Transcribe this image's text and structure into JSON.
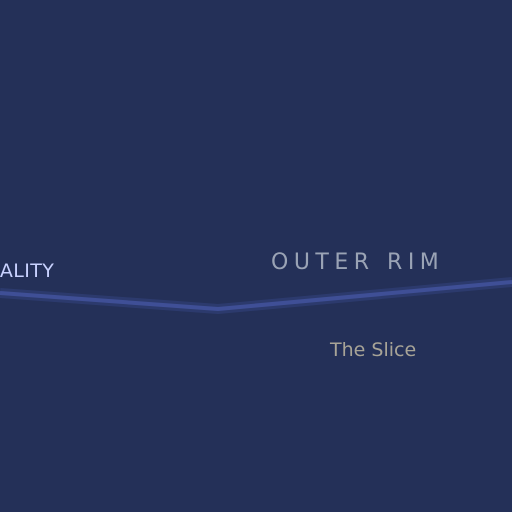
{
  "map": {
    "background_color": "#243058",
    "route": {
      "color": "#3f4f96",
      "glow_color": "#33437f",
      "name": "border-route"
    },
    "labels": {
      "region_left": "RALITY",
      "region_right": "OUTER RIM",
      "place": "The Slice"
    }
  }
}
